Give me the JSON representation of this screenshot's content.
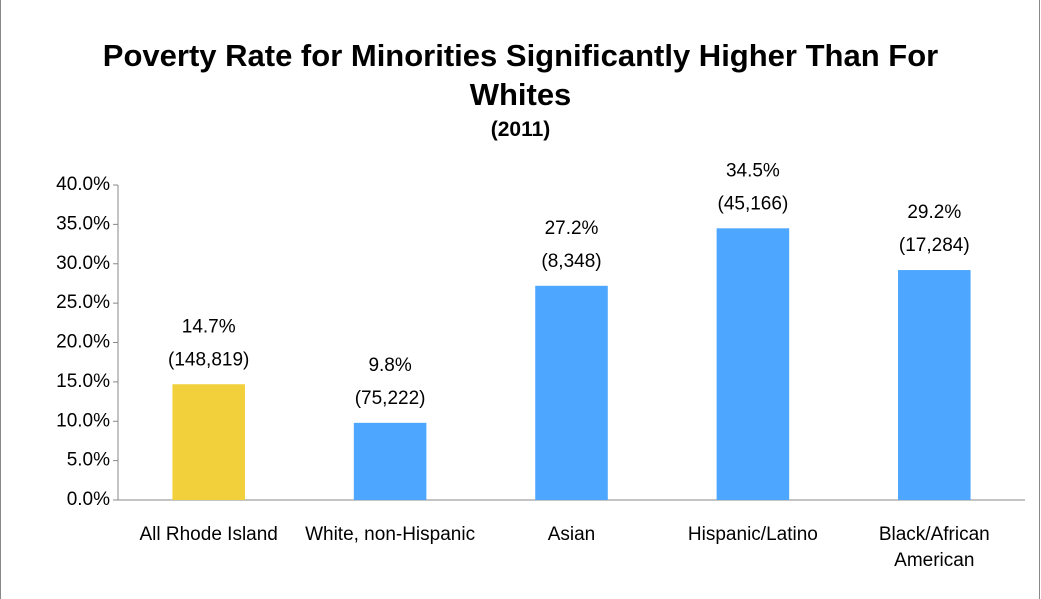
{
  "chart_data": {
    "type": "bar",
    "title": "Poverty Rate for Minorities Significantly Higher Than For Whites",
    "subtitle": "(2011)",
    "categories": [
      "All Rhode Island",
      "White, non-Hispanic",
      "Asian",
      "Hispanic/Latino",
      "Black/African American"
    ],
    "values": [
      14.7,
      9.8,
      27.2,
      34.5,
      29.2
    ],
    "value_labels": [
      "14.7%",
      "9.8%",
      "27.2%",
      "34.5%",
      "29.2%"
    ],
    "count_labels": [
      "(148,819)",
      "(75,222)",
      "(8,348)",
      "(45,166)",
      "(17,284)"
    ],
    "colors": [
      "#f2d03b",
      "#4da6ff",
      "#4da6ff",
      "#4da6ff",
      "#4da6ff"
    ],
    "ylim": [
      0,
      40
    ],
    "yticks": [
      {
        "value": 0,
        "label": "0.0%"
      },
      {
        "value": 5,
        "label": "5.0%"
      },
      {
        "value": 10,
        "label": "10.0%"
      },
      {
        "value": 15,
        "label": "15.0%"
      },
      {
        "value": 20,
        "label": "20.0%"
      },
      {
        "value": 25,
        "label": "25.0%"
      },
      {
        "value": 30,
        "label": "30.0%"
      },
      {
        "value": 35,
        "label": "35.0%"
      },
      {
        "value": 40,
        "label": "40.0%"
      }
    ],
    "grid": false
  }
}
